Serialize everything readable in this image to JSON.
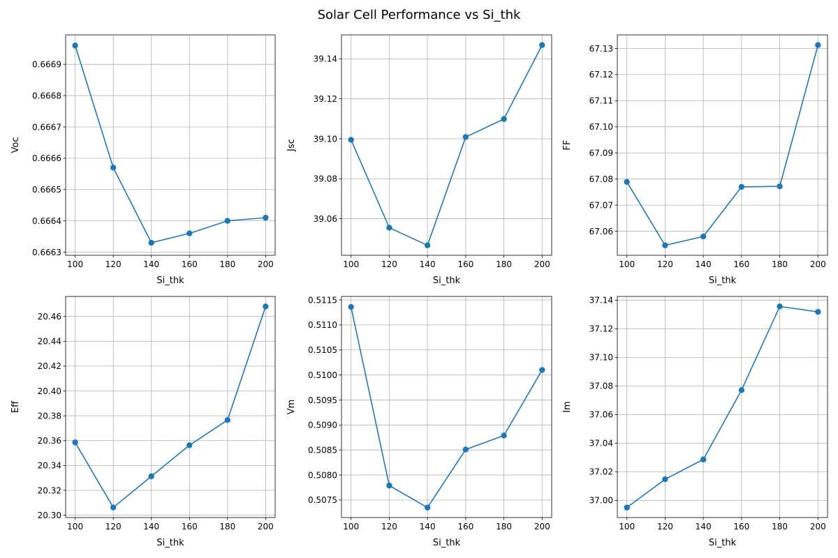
{
  "figure": {
    "title": "Solar Cell Performance vs Si_thk"
  },
  "style": {
    "line_color": "#1f77b4",
    "grid_color": "#b0b0b0",
    "axis_color": "#000000"
  },
  "chart_data": [
    {
      "type": "line",
      "xlabel": "Si_thk",
      "ylabel": "Voc",
      "x": [
        100,
        120,
        140,
        160,
        180,
        200
      ],
      "y": [
        0.66696,
        0.66657,
        0.66633,
        0.66636,
        0.6664,
        0.66641
      ],
      "xticks": [
        100,
        120,
        140,
        160,
        180,
        200
      ],
      "yticks": [
        0.6663,
        0.6664,
        0.6665,
        0.6666,
        0.6667,
        0.6668,
        0.6669
      ],
      "ytick_labels": [
        "0.6663",
        "0.6664",
        "0.6665",
        "0.6666",
        "0.6667",
        "0.6668",
        "0.6669"
      ],
      "xlim": [
        95,
        205
      ],
      "ylim": [
        0.66629,
        0.666994
      ],
      "grid": true,
      "marker": "circle"
    },
    {
      "type": "line",
      "xlabel": "Si_thk",
      "ylabel": "Jsc",
      "x": [
        100,
        120,
        140,
        160,
        180,
        200
      ],
      "y": [
        39.0995,
        39.0555,
        39.0467,
        39.1009,
        39.1099,
        39.1469
      ],
      "xticks": [
        100,
        120,
        140,
        160,
        180,
        200
      ],
      "yticks": [
        39.06,
        39.08,
        39.1,
        39.12,
        39.14
      ],
      "ytick_labels": [
        "39.06",
        "39.08",
        "39.10",
        "39.12",
        "39.14"
      ],
      "xlim": [
        95,
        205
      ],
      "ylim": [
        39.0417,
        39.152
      ],
      "grid": true,
      "marker": "circle"
    },
    {
      "type": "line",
      "xlabel": "Si_thk",
      "ylabel": "FF",
      "x": [
        100,
        120,
        140,
        160,
        180,
        200
      ],
      "y": [
        67.0789,
        67.0546,
        67.058,
        67.077,
        67.0772,
        67.1313
      ],
      "xticks": [
        100,
        120,
        140,
        160,
        180,
        200
      ],
      "yticks": [
        67.06,
        67.07,
        67.08,
        67.09,
        67.1,
        67.11,
        67.12,
        67.13
      ],
      "ytick_labels": [
        "67.06",
        "67.07",
        "67.08",
        "67.09",
        "67.10",
        "67.11",
        "67.12",
        "67.13"
      ],
      "xlim": [
        95,
        205
      ],
      "ylim": [
        67.0508,
        67.1352
      ],
      "grid": true,
      "marker": "circle"
    },
    {
      "type": "line",
      "xlabel": "Si_thk",
      "ylabel": "Eff",
      "x": [
        100,
        120,
        140,
        160,
        180,
        200
      ],
      "y": [
        20.3586,
        20.3062,
        20.3313,
        20.3563,
        20.3766,
        20.468
      ],
      "xticks": [
        100,
        120,
        140,
        160,
        180,
        200
      ],
      "yticks": [
        20.3,
        20.32,
        20.34,
        20.36,
        20.38,
        20.4,
        20.42,
        20.44,
        20.46
      ],
      "ytick_labels": [
        "20.30",
        "20.32",
        "20.34",
        "20.36",
        "20.38",
        "20.40",
        "20.42",
        "20.44",
        "20.46"
      ],
      "xlim": [
        95,
        205
      ],
      "ylim": [
        20.2981,
        20.4761
      ],
      "grid": true,
      "marker": "circle"
    },
    {
      "type": "line",
      "xlabel": "Si_thk",
      "ylabel": "Vm",
      "x": [
        100,
        120,
        140,
        160,
        180,
        200
      ],
      "y": [
        0.51136,
        0.50779,
        0.50735,
        0.50851,
        0.50879,
        0.5101
      ],
      "xticks": [
        100,
        120,
        140,
        160,
        180,
        200
      ],
      "yticks": [
        0.5075,
        0.508,
        0.5085,
        0.509,
        0.5095,
        0.51,
        0.5105,
        0.511,
        0.5115
      ],
      "ytick_labels": [
        "0.5075",
        "0.5080",
        "0.5085",
        "0.5090",
        "0.5095",
        "0.5100",
        "0.5105",
        "0.5110",
        "0.5115"
      ],
      "xlim": [
        95,
        205
      ],
      "ylim": [
        0.50715,
        0.51157
      ],
      "grid": true,
      "marker": "circle"
    },
    {
      "type": "line",
      "xlabel": "Si_thk",
      "ylabel": "Im",
      "x": [
        100,
        120,
        140,
        160,
        180,
        200
      ],
      "y": [
        36.995,
        37.0148,
        37.0286,
        37.0771,
        37.1356,
        37.1318
      ],
      "xticks": [
        100,
        120,
        140,
        160,
        180,
        200
      ],
      "yticks": [
        37.0,
        37.02,
        37.04,
        37.06,
        37.08,
        37.1,
        37.12,
        37.14
      ],
      "ytick_labels": [
        "37.00",
        "37.02",
        "37.04",
        "37.06",
        "37.08",
        "37.10",
        "37.12",
        "37.14"
      ],
      "xlim": [
        95,
        205
      ],
      "ylim": [
        36.988,
        37.1426
      ],
      "grid": true,
      "marker": "circle"
    }
  ]
}
